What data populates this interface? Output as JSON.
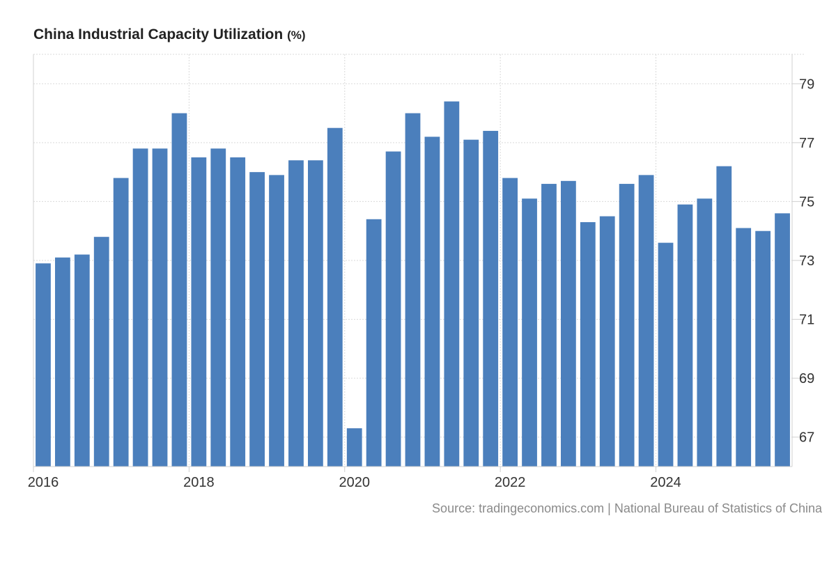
{
  "chart_data": {
    "type": "bar",
    "title": "China Industrial Capacity Utilization",
    "unit": "(%)",
    "xlabel": "",
    "ylabel": "",
    "ylim": [
      66,
      80
    ],
    "yticks": [
      67,
      69,
      71,
      73,
      75,
      77,
      79
    ],
    "xticks": [
      "2016",
      "2018",
      "2020",
      "2022",
      "2024"
    ],
    "grid": true,
    "bar_color": "#4b7fbc",
    "grid_color": "#d9d9d9",
    "categories": [
      "2016 Q1",
      "2016 Q2",
      "2016 Q3",
      "2016 Q4",
      "2017 Q1",
      "2017 Q2",
      "2017 Q3",
      "2017 Q4",
      "2018 Q1",
      "2018 Q2",
      "2018 Q3",
      "2018 Q4",
      "2019 Q1",
      "2019 Q2",
      "2019 Q3",
      "2019 Q4",
      "2020 Q1",
      "2020 Q2",
      "2020 Q3",
      "2020 Q4",
      "2021 Q1",
      "2021 Q2",
      "2021 Q3",
      "2021 Q4",
      "2022 Q1",
      "2022 Q2",
      "2022 Q3",
      "2022 Q4",
      "2023 Q1",
      "2023 Q2",
      "2023 Q3",
      "2023 Q4",
      "2024 Q1",
      "2024 Q2",
      "2024 Q3",
      "2024 Q4",
      "2025 Q1",
      "2025 Q2",
      "2025 Q3"
    ],
    "values": [
      72.9,
      73.1,
      73.2,
      73.8,
      75.8,
      76.8,
      76.8,
      78.0,
      76.5,
      76.8,
      76.5,
      76.0,
      75.9,
      76.4,
      76.4,
      77.5,
      67.3,
      74.4,
      76.7,
      78.0,
      77.2,
      78.4,
      77.1,
      77.4,
      75.8,
      75.1,
      75.6,
      75.7,
      74.3,
      74.5,
      75.6,
      75.9,
      73.6,
      74.9,
      75.1,
      76.2,
      74.1,
      74.0,
      74.6
    ]
  },
  "source": "Source: tradingeconomics.com | National Bureau of Statistics of China"
}
